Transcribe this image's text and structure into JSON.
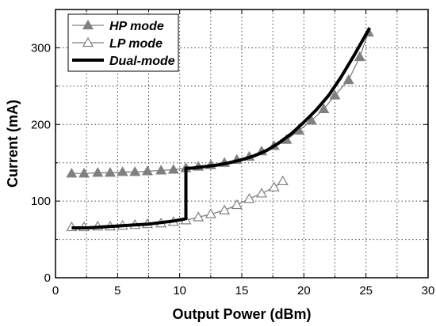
{
  "chart_data": {
    "type": "line",
    "title": "",
    "xlabel": "Output Power (dBm)",
    "ylabel": "Current (mA)",
    "xlim": [
      0,
      30
    ],
    "ylim": [
      0,
      350
    ],
    "xticks": [
      0,
      5,
      10,
      15,
      20,
      25,
      30
    ],
    "yticks": [
      0,
      100,
      200,
      300
    ],
    "grid": true,
    "legend_position": "top-left",
    "series": [
      {
        "name": "HP mode",
        "marker": "filled-triangle",
        "color": "#808080",
        "x": [
          1.3,
          2.3,
          3.4,
          4.4,
          5.4,
          6.4,
          7.4,
          8.5,
          9.5,
          10.5,
          11.5,
          12.5,
          13.6,
          14.6,
          15.6,
          16.6,
          17.6,
          18.6,
          19.6,
          20.6,
          21.6,
          22.5,
          23.6,
          24.5,
          25.2
        ],
        "y": [
          136,
          136,
          137,
          137,
          138,
          138,
          139,
          140,
          141,
          143,
          145,
          147,
          150,
          154,
          158,
          165,
          172,
          180,
          192,
          205,
          220,
          238,
          258,
          288,
          320
        ]
      },
      {
        "name": "LP mode",
        "marker": "open-triangle",
        "color": "#808080",
        "x": [
          1.3,
          2.3,
          3.4,
          4.4,
          5.4,
          6.4,
          7.4,
          8.5,
          9.5,
          10.5,
          11.5,
          12.5,
          13.6,
          14.6,
          15.6,
          16.6,
          17.6,
          18.3
        ],
        "y": [
          66,
          66,
          67,
          67,
          68,
          69,
          70,
          71,
          73,
          75,
          79,
          83,
          88,
          95,
          103,
          110,
          118,
          126
        ]
      },
      {
        "name": "Dual-mode",
        "marker": "none",
        "color": "#000000",
        "x": [
          1.3,
          2.5,
          3.5,
          4.5,
          5.5,
          6.5,
          7.5,
          8.5,
          9.5,
          10.5,
          10.5,
          11.0,
          12.0,
          13.0,
          14.0,
          15.0,
          16.0,
          17.0,
          18.0,
          19.0,
          20.0,
          21.0,
          22.0,
          23.0,
          24.0,
          25.3
        ],
        "y": [
          65,
          65,
          66,
          67,
          68,
          69,
          70,
          72,
          74,
          77,
          143,
          143,
          145,
          147,
          150,
          154,
          159,
          166,
          176,
          188,
          203,
          219,
          238,
          262,
          289,
          326
        ]
      }
    ]
  }
}
